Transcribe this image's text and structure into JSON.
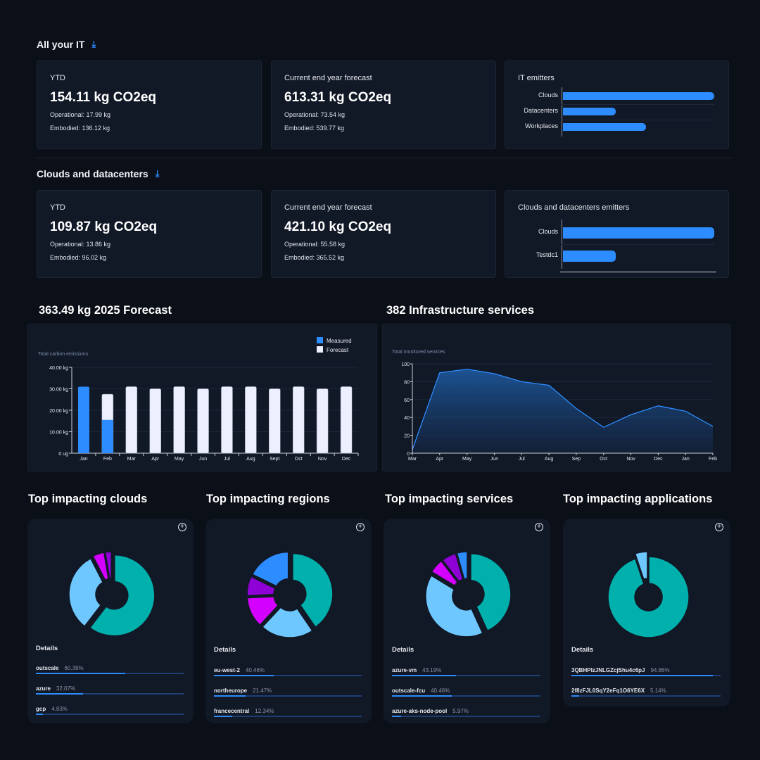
{
  "all_it": {
    "title": "All your IT",
    "download_icon": "download-icon",
    "ytd": {
      "label": "YTD",
      "value": "154.11 kg CO2eq",
      "operational": "Operational: 17.99 kg",
      "embodied": "Embodied: 136.12 kg"
    },
    "forecast": {
      "label": "Current end year forecast",
      "value": "613.31 kg CO2eq",
      "operational": "Operational: 73.54 kg",
      "embodied": "Embodied: 539.77 kg"
    },
    "emitters": {
      "title": "IT emitters",
      "items": [
        {
          "label": "Clouds",
          "share": 1.0
        },
        {
          "label": "Datacenters",
          "share": 0.35
        },
        {
          "label": "Workplaces",
          "share": 0.55
        }
      ]
    }
  },
  "clouds_dc": {
    "title": "Clouds and datacenters",
    "download_icon": "download-icon",
    "ytd": {
      "label": "YTD",
      "value": "109.87 kg CO2eq",
      "operational": "Operational: 13.86 kg",
      "embodied": "Embodied: 96.02 kg"
    },
    "forecast": {
      "label": "Current end year forecast",
      "value": "421.10 kg CO2eq",
      "operational": "Operational: 55.58 kg",
      "embodied": "Embodied: 365.52 kg"
    },
    "emitters": {
      "title": "Clouds and datacenters emitters",
      "items": [
        {
          "label": "Clouds",
          "share": 1.0
        },
        {
          "label": "Testdc1",
          "share": 0.35
        }
      ]
    }
  },
  "forecast_section": {
    "title": "363.49 kg 2025 Forecast"
  },
  "infra_section": {
    "title": "382 Infrastructure services"
  },
  "colors": {
    "measured": "#2d8cff",
    "forecast": "#eceffd",
    "line": "#2d8cff",
    "teal": "#00b0ad",
    "light_blue": "#6ec8ff",
    "magenta": "#d400ff",
    "purple": "#8f00d6",
    "blue": "#2d8cff"
  },
  "chart_data": [
    {
      "type": "bar",
      "title": "Total carbon emissions",
      "legend": [
        "Measured",
        "Forecast"
      ],
      "legend_position": "top-right",
      "categories": [
        "Jan",
        "Feb",
        "Mar",
        "Apr",
        "May",
        "Jun",
        "Jul",
        "Aug",
        "Sept",
        "Oct",
        "Nov",
        "Dec"
      ],
      "series": [
        {
          "name": "Measured",
          "values": [
            31,
            15.5,
            0,
            0,
            0,
            0,
            0,
            0,
            0,
            0,
            0,
            0
          ]
        },
        {
          "name": "Forecast",
          "values": [
            0,
            12,
            31,
            30,
            31,
            30,
            31,
            31,
            30,
            31,
            30,
            31
          ]
        }
      ],
      "yticks": [
        "0 ug",
        "10.00 kg",
        "20.00 kg",
        "30.00 kg",
        "40.00 kg"
      ],
      "ylim": [
        0,
        40
      ],
      "grid": true
    },
    {
      "type": "area",
      "title": "Total monitored services",
      "categories": [
        "Mar",
        "Apr",
        "May",
        "Jun",
        "Jul",
        "Aug",
        "Sep",
        "Oct",
        "Nov",
        "Dec",
        "Jan",
        "Feb"
      ],
      "values": [
        4,
        90,
        94,
        89,
        80,
        76,
        50,
        29,
        43,
        53,
        47,
        30
      ],
      "yticks": [
        "0",
        "20",
        "40",
        "60",
        "80",
        "100"
      ],
      "ylim": [
        0,
        100
      ],
      "grid": true
    }
  ],
  "donuts": [
    {
      "title": "Top impacting clouds",
      "details_label": "Details",
      "zoom_icon": "zoom-in-icon",
      "slices": [
        {
          "value": 60.39,
          "color": "teal"
        },
        {
          "value": 32.07,
          "color": "light_blue"
        },
        {
          "value": 4.83,
          "color": "magenta"
        },
        {
          "value": 2.71,
          "color": "purple"
        }
      ],
      "rows": [
        {
          "name": "outscale",
          "pct": "60.39%",
          "value": 60.39
        },
        {
          "name": "azure",
          "pct": "32.07%",
          "value": 32.07
        },
        {
          "name": "gcp",
          "pct": "4.83%",
          "value": 4.83
        }
      ]
    },
    {
      "title": "Top impacting regions",
      "details_label": "Details",
      "zoom_icon": "zoom-in-icon",
      "slices": [
        {
          "value": 40.46,
          "color": "teal"
        },
        {
          "value": 21.47,
          "color": "light_blue"
        },
        {
          "value": 12.34,
          "color": "magenta"
        },
        {
          "value": 8.0,
          "color": "purple"
        },
        {
          "value": 17.73,
          "color": "blue"
        }
      ],
      "rows": [
        {
          "name": "eu-west-2",
          "pct": "40.46%",
          "value": 40.46
        },
        {
          "name": "northeurope",
          "pct": "21.47%",
          "value": 21.47
        },
        {
          "name": "francecentral",
          "pct": "12.34%",
          "value": 12.34
        }
      ]
    },
    {
      "title": "Top impacting services",
      "details_label": "Details",
      "zoom_icon": "zoom-in-icon",
      "slices": [
        {
          "value": 43.19,
          "color": "teal"
        },
        {
          "value": 40.46,
          "color": "light_blue"
        },
        {
          "value": 5.97,
          "color": "magenta"
        },
        {
          "value": 6.0,
          "color": "purple"
        },
        {
          "value": 4.38,
          "color": "blue"
        }
      ],
      "rows": [
        {
          "name": "azure-vm",
          "pct": "43.19%",
          "value": 43.19
        },
        {
          "name": "outscale-fcu",
          "pct": "40.46%",
          "value": 40.46
        },
        {
          "name": "azure-aks-node-pool",
          "pct": "5.97%",
          "value": 5.97
        }
      ]
    },
    {
      "title": "Top impacting applications",
      "details_label": "Details",
      "zoom_icon": "zoom-in-icon",
      "slices": [
        {
          "value": 94.86,
          "color": "teal"
        },
        {
          "value": 5.14,
          "color": "light_blue"
        }
      ],
      "rows": [
        {
          "name": "3QBHPlzJNLGZcjShu4c6pJ",
          "pct": "94.86%",
          "value": 94.86
        },
        {
          "name": "2f8zFJL0SqY2eFq1O6YE6X",
          "pct": "5.14%",
          "value": 5.14
        }
      ]
    }
  ]
}
